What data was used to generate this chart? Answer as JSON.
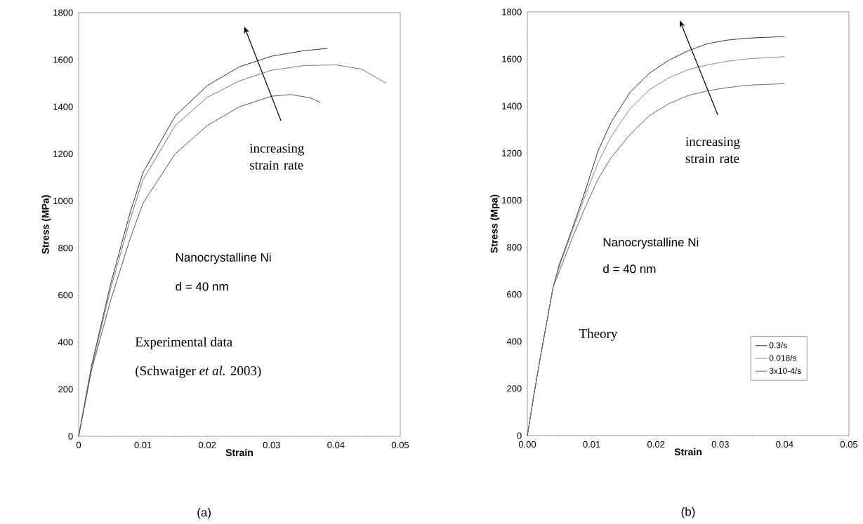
{
  "chart_data": [
    {
      "type": "line",
      "xlabel": "Strain",
      "ylabel": "Stress (MPa)",
      "xlim": [
        0,
        0.05
      ],
      "ylim": [
        0,
        1800
      ],
      "xticks": [
        0,
        0.01,
        0.02,
        0.03,
        0.04,
        0.05
      ],
      "yticks": [
        0,
        200,
        400,
        600,
        800,
        1000,
        1200,
        1400,
        1600,
        1800
      ],
      "series": [
        {
          "color": "#333333",
          "x": [
            0,
            0.002,
            0.005,
            0.008,
            0.01,
            0.015,
            0.02,
            0.025,
            0.03,
            0.035,
            0.0387
          ],
          "values": [
            0,
            300,
            650,
            950,
            1120,
            1360,
            1490,
            1570,
            1615,
            1638,
            1648
          ]
        },
        {
          "color": "#777777",
          "x": [
            0,
            0.002,
            0.005,
            0.008,
            0.01,
            0.015,
            0.02,
            0.025,
            0.03,
            0.035,
            0.04,
            0.044,
            0.0478
          ],
          "values": [
            0,
            290,
            630,
            920,
            1090,
            1320,
            1440,
            1510,
            1555,
            1575,
            1578,
            1560,
            1500
          ]
        },
        {
          "color": "#555555",
          "x": [
            0,
            0.002,
            0.005,
            0.008,
            0.01,
            0.015,
            0.02,
            0.025,
            0.03,
            0.033,
            0.036,
            0.0376
          ],
          "values": [
            0,
            280,
            580,
            840,
            990,
            1200,
            1320,
            1400,
            1445,
            1452,
            1438,
            1418
          ]
        }
      ],
      "annotations": [
        "increasing strain rate",
        "Nanocrystalline Ni",
        "d = 40 nm",
        "Experimental data",
        "(Schwaiger *et al.* 2003)",
        "(a)"
      ]
    },
    {
      "type": "line",
      "xlabel": "Strain",
      "ylabel": "Stress (Mpa)",
      "xlim": [
        0,
        0.05
      ],
      "ylim": [
        0,
        1800
      ],
      "xticks": [
        {
          "value": 0,
          "label": "0.00"
        },
        {
          "value": 0.01,
          "label": "0.01"
        },
        {
          "value": 0.02,
          "label": "0.02"
        },
        {
          "value": 0.03,
          "label": "0.03"
        },
        {
          "value": 0.04,
          "label": "0.04"
        },
        {
          "value": 0.05,
          "label": "0.05"
        }
      ],
      "yticks": [
        0,
        200,
        400,
        600,
        800,
        1000,
        1200,
        1400,
        1600,
        1800
      ],
      "legend": "bottom right",
      "series": [
        {
          "name": "0.3/s",
          "color": "#333333",
          "x": [
            0,
            0.001,
            0.002,
            0.003,
            0.004,
            0.005,
            0.007,
            0.009,
            0.011,
            0.013,
            0.016,
            0.019,
            0.022,
            0.025,
            0.028,
            0.031,
            0.034,
            0.037,
            0.04
          ],
          "values": [
            0,
            170,
            330,
            480,
            630,
            730,
            880,
            1040,
            1210,
            1330,
            1460,
            1540,
            1595,
            1635,
            1665,
            1680,
            1688,
            1692,
            1695
          ]
        },
        {
          "name": "0.018/s",
          "color": "#888888",
          "x": [
            0,
            0.001,
            0.002,
            0.003,
            0.004,
            0.005,
            0.007,
            0.009,
            0.011,
            0.013,
            0.016,
            0.019,
            0.022,
            0.025,
            0.028,
            0.031,
            0.034,
            0.037,
            0.04
          ],
          "values": [
            0,
            170,
            330,
            480,
            630,
            720,
            870,
            1020,
            1160,
            1270,
            1390,
            1470,
            1520,
            1555,
            1575,
            1590,
            1600,
            1605,
            1610
          ]
        },
        {
          "name": "3x10-4/s",
          "color": "#666666",
          "x": [
            0,
            0.001,
            0.002,
            0.003,
            0.004,
            0.005,
            0.007,
            0.009,
            0.011,
            0.013,
            0.016,
            0.019,
            0.022,
            0.025,
            0.028,
            0.031,
            0.034,
            0.037,
            0.04
          ],
          "values": [
            0,
            170,
            330,
            480,
            630,
            700,
            840,
            970,
            1090,
            1180,
            1280,
            1360,
            1410,
            1445,
            1465,
            1478,
            1488,
            1492,
            1495
          ]
        }
      ],
      "annotations": [
        "increasing strain rate",
        "Nanocrystalline Ni",
        "d = 40 nm",
        "Theory",
        "(b)"
      ]
    }
  ]
}
